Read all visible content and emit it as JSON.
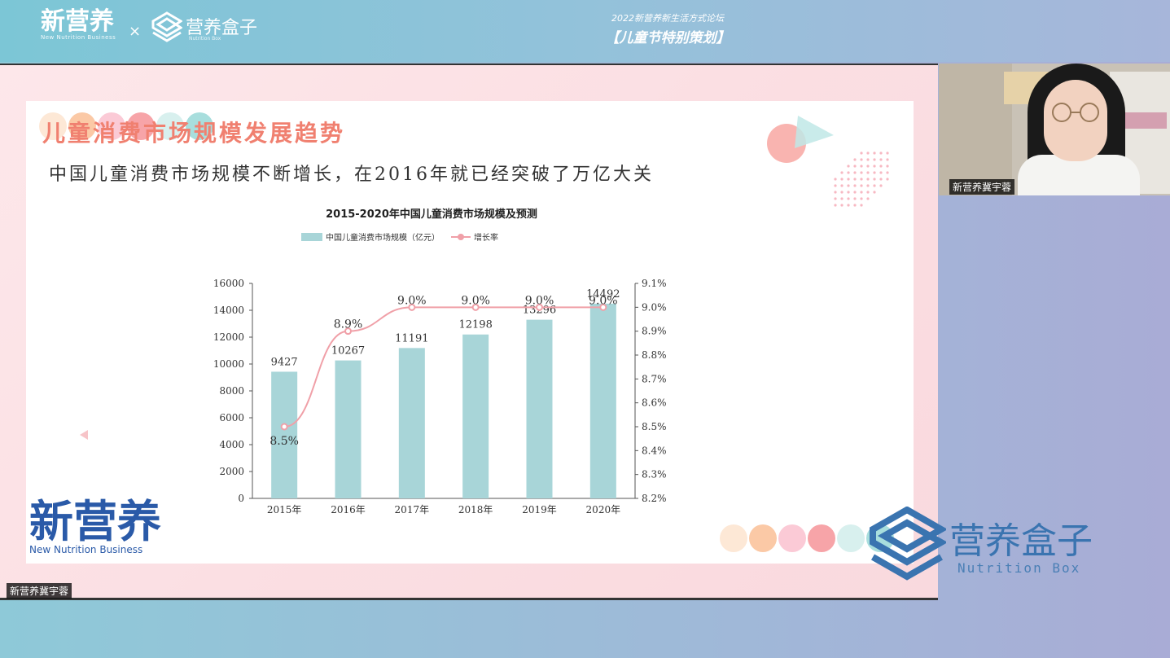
{
  "header": {
    "brand_cn": "新营养",
    "brand_en": "New Nutrition Business",
    "times": "×",
    "box_cn": "营养盒子",
    "box_en": "Nutrition Box",
    "event_line1": "2022新营养新生活方式论坛",
    "event_line2": "【儿童节特别策划】"
  },
  "slide": {
    "title": "儿童消费市场规模发展趋势",
    "subtitle": "中国儿童消费市场规模不断增长，在2016年就已经突破了万亿大关",
    "dots_top": [
      "#fde8d6",
      "#fbc9a6",
      "#fbcad6",
      "#f7a4a8",
      "#d8f0ee",
      "#a8dedd"
    ],
    "dots_bottom": [
      "#fde8d6",
      "#fbc9a6",
      "#fbcad6",
      "#f7a4a8",
      "#d8f0ee",
      "#a8dedd"
    ]
  },
  "chart_data": {
    "type": "bar",
    "title": "2015-2020年中国儿童消费市场规模及预测",
    "categories": [
      "2015年",
      "2016年",
      "2017年",
      "2018年",
      "2019年",
      "2020年"
    ],
    "series": [
      {
        "name": "中国儿童消费市场规模（亿元）",
        "type": "bar",
        "axis": "left",
        "values": [
          9427,
          10267,
          11191,
          12198,
          13296,
          14492
        ],
        "labels": [
          "9427",
          "10267",
          "11191",
          "12198",
          "13296",
          "14492"
        ],
        "color": "#a8d5d8"
      },
      {
        "name": "增长率",
        "type": "line",
        "axis": "right",
        "values": [
          8.5,
          8.9,
          9.0,
          9.0,
          9.0,
          9.0
        ],
        "labels": [
          "8.5%",
          "8.9%",
          "9.0%",
          "9.0%",
          "9.0%",
          "9.0%"
        ],
        "color": "#f0a0a8"
      }
    ],
    "ylim": [
      0,
      16000
    ],
    "yticks": [
      "0",
      "2000",
      "4000",
      "6000",
      "8000",
      "10000",
      "12000",
      "14000",
      "16000"
    ],
    "y2lim": [
      8.2,
      9.1
    ],
    "y2ticks": [
      "8.2%",
      "8.3%",
      "8.4%",
      "8.5%",
      "8.6%",
      "8.7%",
      "8.8%",
      "8.9%",
      "9.0%",
      "9.1%"
    ],
    "legend": "top"
  },
  "bottom_logos": {
    "nb_cn": "新营养",
    "nb_en": "New Nutrition Business",
    "nbox_cn": "营养盒子",
    "nbox_en": "Nutrition Box"
  },
  "participants": {
    "main_name": "新营养冀宇蓉",
    "cam_name": "新营养冀宇蓉"
  }
}
